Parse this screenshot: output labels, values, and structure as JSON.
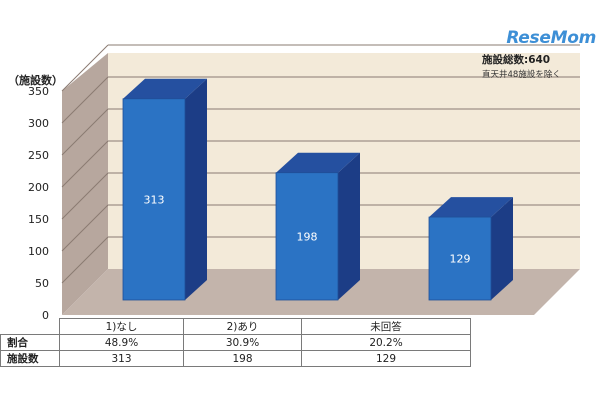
{
  "logo": "ReseMom",
  "note_line1": "施設総数:640",
  "note_line2": "直天井48施設を除く",
  "chart_data": {
    "type": "bar",
    "ylabel": "（施設数）",
    "ylim": [
      0,
      350
    ],
    "yticks": [
      0,
      50,
      100,
      150,
      200,
      250,
      300,
      350
    ],
    "categories": [
      "1)なし",
      "2)あり",
      "未回答"
    ],
    "values": [
      313,
      198,
      129
    ],
    "data_labels": [
      "313",
      "198",
      "129"
    ],
    "bar_color": "#2b73c4",
    "bar_top_color": "#2550a0",
    "bar_side_color": "#1c3d86",
    "wall_color": "#f3ead9",
    "side_wall_color": "#b7a79e",
    "floor_color": "#c3b4ab",
    "grid": true
  },
  "table": {
    "rows": [
      {
        "label": "割合",
        "values": [
          "48.9%",
          "30.9%",
          "20.2%"
        ]
      },
      {
        "label": "施設数",
        "values": [
          "313",
          "198",
          "129"
        ]
      }
    ]
  }
}
